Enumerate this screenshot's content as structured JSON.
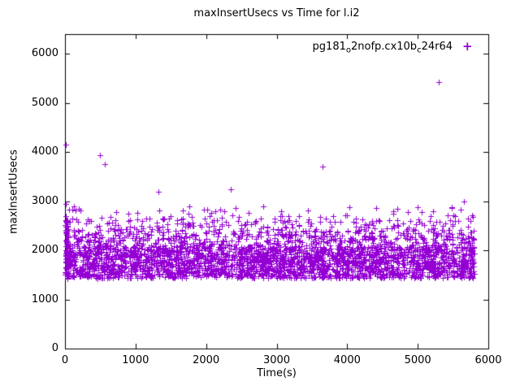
{
  "chart_data": {
    "type": "scatter",
    "title": "maxInsertUsecs vs Time for l.i2",
    "xlabel": "Time(s)",
    "ylabel": "maxInsertUsecs",
    "xlim": [
      0,
      6000
    ],
    "ylim": [
      0,
      6400
    ],
    "xticks": [
      0,
      1000,
      2000,
      3000,
      4000,
      5000,
      6000
    ],
    "yticks": [
      0,
      1000,
      2000,
      3000,
      4000,
      5000,
      6000
    ],
    "grid": false,
    "legend_position": "top-right-inside",
    "marker_color": "#9400d3",
    "legend": {
      "marker_glyph": "+",
      "parts": [
        "pg181",
        "o",
        "2nofp.cx10b",
        "c",
        "24r64"
      ]
    },
    "series": {
      "name": "pg181_o2nofp.cx10b_c24r64",
      "marker": "plus",
      "color": "#9400d3",
      "band": {
        "seed": 42,
        "n_points": 3200,
        "x_min": 5,
        "x_max": 5800,
        "y_layers": [
          {
            "weight": 0.1,
            "y_min": 1430,
            "y_max": 1510
          },
          {
            "weight": 0.68,
            "y_min": 1510,
            "y_max": 2080
          },
          {
            "weight": 0.16,
            "y_min": 2080,
            "y_max": 2420
          },
          {
            "weight": 0.045,
            "y_min": 2420,
            "y_max": 2650
          },
          {
            "weight": 0.015,
            "y_min": 2650,
            "y_max": 2900
          }
        ]
      },
      "edge_cluster": {
        "seed": 7,
        "n_points": 60,
        "x_min": 2,
        "x_max": 45,
        "y_min": 1480,
        "y_max": 2620
      },
      "outliers": [
        [
          10,
          4150
        ],
        [
          8,
          2700
        ],
        [
          14,
          2950
        ],
        [
          22,
          2620
        ],
        [
          30,
          2480
        ],
        [
          200,
          2850
        ],
        [
          350,
          2600
        ],
        [
          500,
          3930
        ],
        [
          560,
          3760
        ],
        [
          620,
          2560
        ],
        [
          900,
          2750
        ],
        [
          1150,
          2640
        ],
        [
          1330,
          3190
        ],
        [
          1500,
          2700
        ],
        [
          1800,
          2680
        ],
        [
          2050,
          2700
        ],
        [
          2350,
          3240
        ],
        [
          2600,
          2760
        ],
        [
          3050,
          2700
        ],
        [
          3650,
          3700
        ],
        [
          3700,
          2640
        ],
        [
          4000,
          2720
        ],
        [
          4350,
          2600
        ],
        [
          4650,
          2740
        ],
        [
          4900,
          2600
        ],
        [
          5050,
          2780
        ],
        [
          5300,
          5420
        ],
        [
          5500,
          2720
        ],
        [
          5650,
          2990
        ],
        [
          5750,
          2600
        ]
      ]
    }
  }
}
